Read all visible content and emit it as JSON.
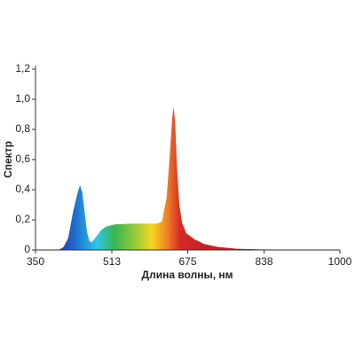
{
  "chart_data": {
    "type": "area",
    "y_label": "Спектр",
    "x_label": "Длина волны, нм",
    "x": [
      400,
      410,
      420,
      430,
      440,
      445,
      450,
      455,
      460,
      465,
      470,
      480,
      490,
      500,
      520,
      560,
      600,
      610,
      620,
      630,
      636,
      642,
      645,
      648,
      652,
      657,
      663,
      672,
      690,
      710,
      740,
      780,
      830,
      900,
      1000
    ],
    "values": [
      0,
      0.02,
      0.08,
      0.25,
      0.38,
      0.43,
      0.38,
      0.25,
      0.12,
      0.06,
      0.05,
      0.09,
      0.13,
      0.155,
      0.17,
      0.175,
      0.175,
      0.175,
      0.19,
      0.35,
      0.6,
      0.88,
      0.95,
      0.85,
      0.55,
      0.3,
      0.18,
      0.11,
      0.07,
      0.04,
      0.02,
      0.008,
      0.004,
      0.002,
      0
    ],
    "xlim": [
      350,
      1000
    ],
    "xticks": [
      350,
      513,
      675,
      838,
      1000
    ],
    "ylim": [
      0,
      1.2
    ],
    "yticks": [
      0,
      {
        "value": 0.2,
        "label": "0,2"
      },
      {
        "value": 0.4,
        "label": "0,4"
      },
      {
        "value": 0.6,
        "label": "0,6"
      },
      {
        "value": 0.8,
        "label": "0,8"
      },
      {
        "value": 1.0,
        "label": "1,0"
      },
      {
        "value": 1.2,
        "label": "1,2"
      }
    ]
  }
}
